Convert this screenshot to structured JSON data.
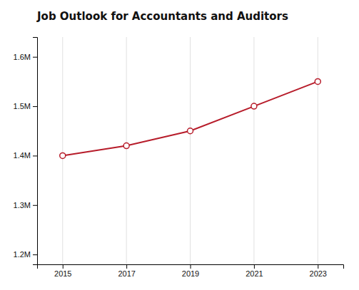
{
  "chart_data": {
    "type": "line",
    "title": "Job Outlook for Accountants and Auditors",
    "x": [
      2015,
      2017,
      2019,
      2021,
      2023
    ],
    "values": [
      1400000,
      1420000,
      1450000,
      1500000,
      1550000
    ],
    "color": "#b71c2a",
    "marker": "circle",
    "xlim": [
      2014.2,
      2023.8
    ],
    "xticks": [
      2015,
      2017,
      2019,
      2021,
      2023
    ],
    "ylim": [
      1180000,
      1640000
    ],
    "yticks": [
      {
        "value": 1200000,
        "label": "1.2M"
      },
      {
        "value": 1300000,
        "label": "1.3M"
      },
      {
        "value": 1400000,
        "label": "1.4M"
      },
      {
        "value": 1500000,
        "label": "1.5M"
      },
      {
        "value": 1600000,
        "label": "1.6M"
      }
    ],
    "grid": "x"
  }
}
